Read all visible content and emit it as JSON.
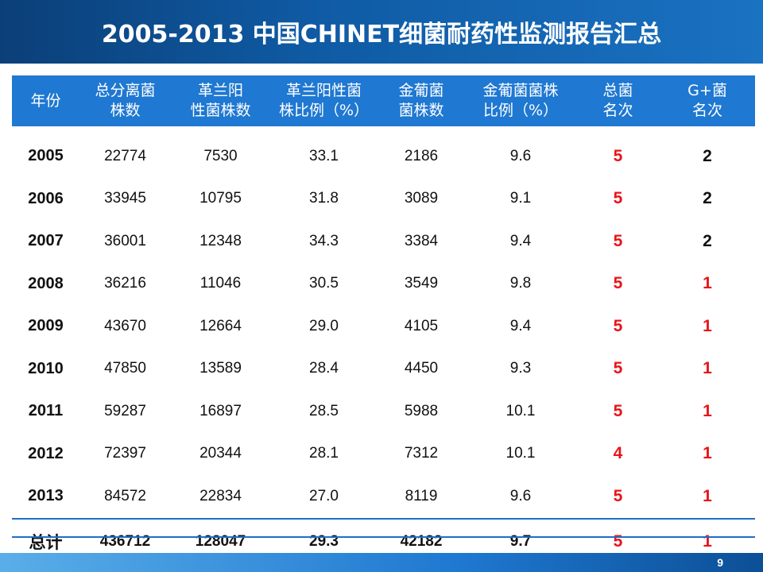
{
  "title": "2005-2013 中国CHINET细菌耐药性监测报告汇总",
  "headers": [
    [
      "年份"
    ],
    [
      "总分离菌",
      "株数"
    ],
    [
      "革兰阳",
      "性菌株数"
    ],
    [
      "革兰阳性菌",
      "株比例（%）"
    ],
    [
      "金葡菌",
      "菌株数"
    ],
    [
      "金葡菌菌株",
      "比例（%）"
    ],
    [
      "总菌",
      "名次"
    ],
    [
      "G+菌",
      "名次"
    ]
  ],
  "rows": [
    [
      "2005",
      "22774",
      "7530",
      "33.1",
      "2186",
      "9.6",
      "5",
      "2"
    ],
    [
      "2006",
      "33945",
      "10795",
      "31.8",
      "3089",
      "9.1",
      "5",
      "2"
    ],
    [
      "2007",
      "36001",
      "12348",
      "34.3",
      "3384",
      "9.4",
      "5",
      "2"
    ],
    [
      "2008",
      "36216",
      "11046",
      "30.5",
      "3549",
      "9.8",
      "5",
      "1"
    ],
    [
      "2009",
      "43670",
      "12664",
      "29.0",
      "4105",
      "9.4",
      "5",
      "1"
    ],
    [
      "2010",
      "47850",
      "13589",
      "28.4",
      "4450",
      "9.3",
      "5",
      "1"
    ],
    [
      "2011",
      "59287",
      "16897",
      "28.5",
      "5988",
      "10.1",
      "5",
      "1"
    ],
    [
      "2012",
      "72397",
      "20344",
      "28.1",
      "7312",
      "10.1",
      "4",
      "1"
    ],
    [
      "2013",
      "84572",
      "22834",
      "27.0",
      "8119",
      "9.6",
      "5",
      "1"
    ]
  ],
  "total": [
    "总计",
    "436712",
    "128047",
    "29.3",
    "42182",
    "9.7",
    "5",
    "1"
  ],
  "page_number": "9",
  "colors": {
    "title_bar": "#0f5aa3",
    "header_bg": "#1f78d1",
    "rank_red": "#e8141a",
    "rank_black": "#111111"
  }
}
